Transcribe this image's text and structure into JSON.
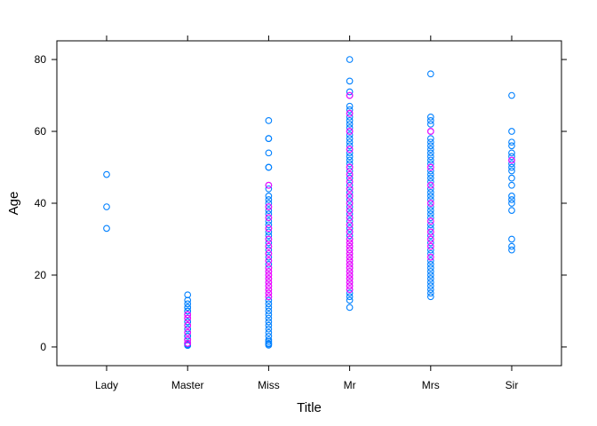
{
  "chart_data": {
    "type": "scatter",
    "xlabel": "Title",
    "ylabel": "Age",
    "categories": [
      "Lady",
      "Master",
      "Miss",
      "Mr",
      "Mrs",
      "Sir"
    ],
    "ylim": [
      -5.2,
      85.2
    ],
    "yticks": [
      0,
      20,
      40,
      60,
      80
    ],
    "grid": false,
    "legend": "none",
    "colors": {
      "dark": "#0080ff",
      "light": "#ff00ff"
    },
    "series": [
      {
        "values": {
          "Lady": [
            48,
            39,
            33
          ],
          "Master": [
            14.5,
            13,
            12,
            11,
            11,
            10,
            10,
            9,
            9,
            9,
            8,
            8,
            8,
            7,
            7,
            6,
            6,
            5,
            5,
            4,
            4,
            4,
            3,
            3,
            3,
            2,
            2,
            2,
            1,
            1,
            1,
            1,
            0.8,
            0.7,
            0.5,
            0.4
          ],
          "Miss": [
            63,
            58,
            58,
            54,
            50,
            50,
            45,
            44,
            42,
            41,
            40,
            39,
            38,
            37,
            36,
            35,
            34,
            33,
            32,
            31,
            30,
            29,
            28,
            27,
            26,
            25,
            24,
            23,
            22,
            21,
            20,
            19,
            18,
            17,
            16,
            15,
            14,
            13,
            12,
            11,
            10,
            9,
            8,
            7,
            6,
            5,
            4,
            3,
            2,
            1.5,
            1,
            0.8,
            0.5
          ],
          "Mr": [
            80,
            74,
            71,
            70,
            67,
            66,
            65,
            64,
            63,
            62,
            61,
            60,
            59,
            58,
            57,
            56,
            55,
            54,
            53,
            52,
            51,
            50,
            49,
            48,
            47,
            46,
            45,
            44,
            43,
            42,
            41,
            40,
            39,
            38,
            37,
            36,
            35,
            34,
            33,
            32,
            31,
            30,
            29,
            28,
            27,
            26,
            25,
            24,
            23,
            22,
            21,
            20,
            19,
            18,
            17,
            16,
            15,
            14,
            13,
            11
          ],
          "Mrs": [
            76,
            64,
            63,
            62,
            60,
            58,
            57,
            56,
            55,
            54,
            53,
            52,
            51,
            50,
            49,
            48,
            47,
            46,
            45,
            44,
            43,
            42,
            41,
            40,
            39,
            38,
            37,
            36,
            35,
            34,
            33,
            32,
            31,
            30,
            29,
            28,
            27,
            26,
            25,
            24,
            23,
            22,
            21,
            20,
            19,
            18,
            17,
            16,
            15,
            14
          ],
          "Sir": [
            70,
            60,
            57,
            56,
            54,
            53,
            52,
            51,
            50,
            49,
            47,
            45,
            42,
            41,
            40,
            38,
            30,
            28,
            27
          ]
        }
      },
      {
        "values": {
          "Master": [
            9,
            8,
            6,
            4,
            2,
            1
          ],
          "Miss": [
            45,
            39,
            36,
            33,
            30,
            28,
            26,
            24,
            22,
            21,
            20,
            19,
            18,
            17,
            16,
            15,
            14
          ],
          "Mr": [
            70,
            65,
            60,
            55,
            50,
            48,
            46,
            44,
            42,
            40,
            38,
            36,
            34,
            32,
            30,
            29,
            28,
            27,
            26,
            25,
            24,
            23,
            22,
            21,
            20,
            19,
            18,
            17,
            16
          ],
          "Mrs": [
            60,
            50,
            45,
            40,
            35,
            32,
            30,
            28,
            25
          ],
          "Sir": [
            52
          ]
        }
      }
    ]
  }
}
